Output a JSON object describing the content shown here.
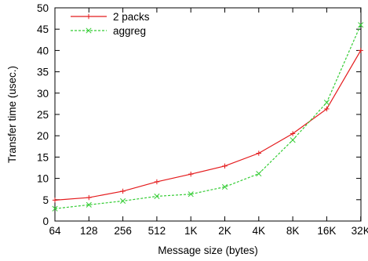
{
  "chart_data": {
    "type": "line",
    "categories": [
      "64",
      "128",
      "256",
      "512",
      "1K",
      "2K",
      "4K",
      "8K",
      "16K",
      "32K"
    ],
    "xlabel": "Message size (bytes)",
    "ylabel": "Transfer time (usec.)",
    "ylim": [
      0,
      50
    ],
    "yticks": [
      0,
      5,
      10,
      15,
      20,
      25,
      30,
      35,
      40,
      45,
      50
    ],
    "grid": false,
    "legend_position": "top-left",
    "series": [
      {
        "name": "2 packs",
        "color": "#e41a1c",
        "line_style": "solid",
        "marker": "plus",
        "values": [
          4.9,
          5.5,
          7.0,
          9.2,
          11.0,
          12.9,
          15.9,
          20.5,
          26.3,
          40.0
        ]
      },
      {
        "name": "aggreg",
        "color": "#33cc33",
        "line_style": "dashed",
        "marker": "cross",
        "values": [
          2.9,
          3.8,
          4.7,
          5.8,
          6.3,
          8.0,
          11.1,
          19.0,
          27.8,
          46.0
        ]
      }
    ]
  }
}
